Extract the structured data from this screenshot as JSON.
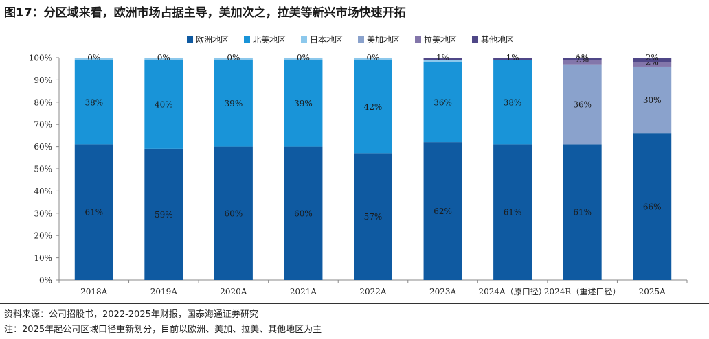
{
  "header": {
    "title": "图17：分区域来看，欧洲市场占据主导，美加次之，拉美等新兴市场快速开拓"
  },
  "footer": {
    "source": "资料来源：公司招股书，2022-2025年财报，国泰海通证券研究",
    "note": "注：2025年起公司区域口径重新划分，目前以欧洲、美加、拉美、其他地区为主"
  },
  "chart_data": {
    "type": "bar",
    "stacked": true,
    "categories": [
      "2018A",
      "2019A",
      "2020A",
      "2021A",
      "2022A",
      "2023A",
      "2024A（原口径）",
      "2024R（重述口径）",
      "2025A"
    ],
    "ylim": [
      0,
      100
    ],
    "yticks": [
      "0%",
      "10%",
      "20%",
      "30%",
      "40%",
      "50%",
      "60%",
      "70%",
      "80%",
      "90%",
      "100%"
    ],
    "legend_position": "top-center",
    "grid": false,
    "series": [
      {
        "name": "欧洲地区",
        "color": "#0f5aa1",
        "values": [
          61,
          59,
          60,
          60,
          57,
          62,
          61,
          61,
          66
        ],
        "labels": [
          "61%",
          "59%",
          "60%",
          "60%",
          "57%",
          "62%",
          "61%",
          "61%",
          "66%"
        ]
      },
      {
        "name": "北美地区",
        "color": "#1994d8",
        "values": [
          38,
          40,
          39,
          39,
          42,
          36,
          38,
          0,
          0
        ],
        "labels": [
          "38%",
          "40%",
          "39%",
          "39%",
          "42%",
          "36%",
          "38%",
          "",
          ""
        ]
      },
      {
        "name": "日本地区",
        "color": "#8cc8ec",
        "values": [
          1,
          1,
          1,
          1,
          1,
          1,
          0,
          0,
          0
        ],
        "labels": [
          "",
          "",
          "",
          "",
          "",
          "",
          "",
          "",
          ""
        ]
      },
      {
        "name": "美加地区",
        "color": "#8aa2cc",
        "values": [
          0,
          0,
          0,
          0,
          0,
          0,
          0,
          36,
          30
        ],
        "labels": [
          "",
          "",
          "",
          "",
          "",
          "",
          "",
          "36%",
          "30%"
        ]
      },
      {
        "name": "拉美地区",
        "color": "#8376aa",
        "values": [
          0,
          0,
          0,
          0,
          0,
          0,
          0,
          2,
          2
        ],
        "labels": [
          "",
          "",
          "",
          "",
          "",
          "",
          "",
          "2%",
          "2%"
        ]
      },
      {
        "name": "其他地区",
        "color": "#4f4787",
        "values": [
          0,
          0,
          0,
          0,
          0,
          1,
          1,
          1,
          2
        ],
        "labels": [
          "0%",
          "0%",
          "0%",
          "0%",
          "0%",
          "1%",
          "1%",
          "1%",
          "2%"
        ]
      }
    ]
  }
}
